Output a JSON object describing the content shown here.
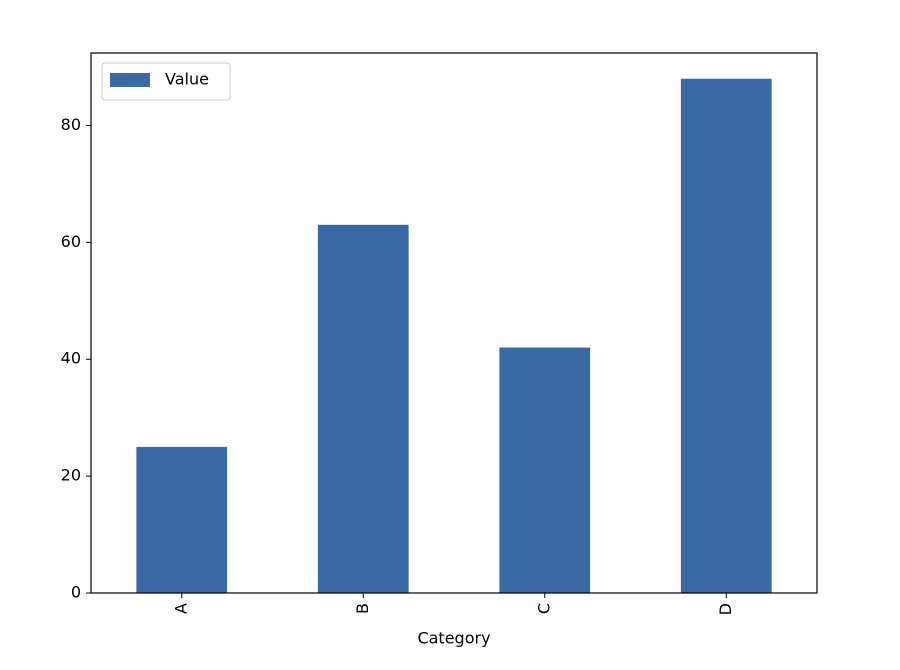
{
  "chart_data": {
    "type": "bar",
    "xlabel": "Category",
    "categories": [
      "A",
      "B",
      "C",
      "D"
    ],
    "series": [
      {
        "name": "Value",
        "color": "#3a6aa4",
        "values": [
          25,
          63,
          42,
          88
        ]
      }
    ],
    "ylim": [
      0,
      92.4
    ],
    "yticks": [
      0,
      20,
      40,
      60,
      80
    ],
    "legend": "upper left"
  }
}
